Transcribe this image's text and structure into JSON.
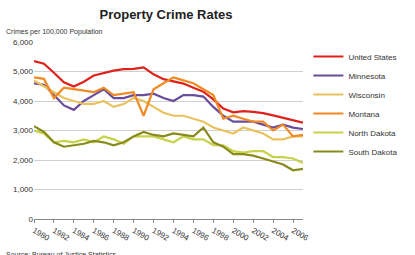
{
  "chart_data": {
    "type": "line",
    "title": "Property Crime Rates",
    "ylabel": "Crimes per 100,000 Population",
    "note": "Source: Bureau of Justice Statistics",
    "x": [
      1980,
      1981,
      1982,
      1983,
      1984,
      1985,
      1986,
      1987,
      1988,
      1989,
      1990,
      1991,
      1992,
      1993,
      1994,
      1995,
      1996,
      1997,
      1998,
      1999,
      2000,
      2001,
      2002,
      2003,
      2004,
      2005,
      2006,
      2007
    ],
    "series": [
      {
        "name": "United States",
        "color": "#e0201b",
        "values": [
          5353,
          5264,
          4956,
          4637,
          4492,
          4651,
          4863,
          4941,
          5027,
          5078,
          5089,
          5140,
          4903,
          4740,
          4660,
          4591,
          4451,
          4316,
          4053,
          3744,
          3618,
          3658,
          3631,
          3591,
          3514,
          3432,
          3336,
          3264
        ]
      },
      {
        "name": "Minnesota",
        "color": "#6a4c9c",
        "values": [
          4600,
          4550,
          4200,
          3850,
          3700,
          4000,
          4200,
          4400,
          4100,
          4100,
          4200,
          4200,
          4250,
          4100,
          4000,
          4200,
          4200,
          4150,
          3800,
          3500,
          3300,
          3300,
          3300,
          3200,
          3100,
          3200,
          3100,
          3050
        ]
      },
      {
        "name": "Wisconsin",
        "color": "#e9c25e",
        "values": [
          4700,
          4500,
          4300,
          4100,
          4000,
          3900,
          3900,
          4000,
          3800,
          3900,
          4100,
          4000,
          3800,
          3600,
          3500,
          3500,
          3400,
          3300,
          3100,
          3000,
          2900,
          3100,
          3000,
          2900,
          2700,
          2700,
          2800,
          2800
        ]
      },
      {
        "name": "Montana",
        "color": "#f08a24",
        "values": [
          4800,
          4750,
          4100,
          4450,
          4400,
          4350,
          4300,
          4450,
          4200,
          4250,
          4300,
          3500,
          4400,
          4600,
          4800,
          4700,
          4600,
          4400,
          4200,
          3400,
          3500,
          3400,
          3300,
          3300,
          3000,
          3200,
          2800,
          2850
        ]
      },
      {
        "name": "North Dakota",
        "color": "#c6d24a",
        "values": [
          3000,
          2900,
          2600,
          2650,
          2600,
          2700,
          2600,
          2800,
          2700,
          2550,
          2800,
          2800,
          2800,
          2700,
          2600,
          2800,
          2700,
          2700,
          2500,
          2500,
          2300,
          2250,
          2300,
          2300,
          2100,
          2100,
          2050,
          1900
        ]
      },
      {
        "name": "South Dakota",
        "color": "#8a8a1c",
        "values": [
          3150,
          2950,
          2600,
          2450,
          2500,
          2550,
          2650,
          2600,
          2500,
          2600,
          2800,
          2950,
          2850,
          2800,
          2900,
          2850,
          2800,
          3100,
          2600,
          2450,
          2200,
          2200,
          2150,
          2050,
          1950,
          1850,
          1650,
          1700
        ]
      }
    ],
    "xlim": [
      1980,
      2007
    ],
    "xticks": [
      1980,
      1982,
      1984,
      1986,
      1988,
      1990,
      1992,
      1994,
      1996,
      1998,
      2000,
      2002,
      2004,
      2006
    ],
    "ylim": [
      0,
      6000
    ],
    "yticks": [
      0,
      {
        "value": 1000,
        "label": "1,000"
      },
      {
        "value": 2000,
        "label": "2,000"
      },
      {
        "value": 3000,
        "label": "3,000"
      },
      {
        "value": 4000,
        "label": "4,000"
      },
      {
        "value": 5000,
        "label": "5,000"
      },
      {
        "value": 6000,
        "label": "6,000"
      }
    ],
    "grid": true,
    "legend": "right"
  }
}
